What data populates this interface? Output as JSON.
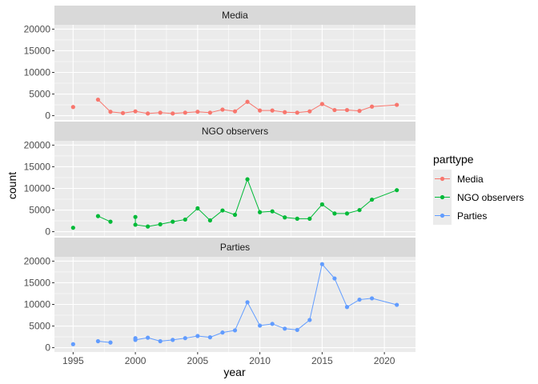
{
  "chart_data": {
    "type": "line",
    "facet_by": "parttype",
    "xlabel": "year",
    "ylabel": "count",
    "xlim": [
      1993.5,
      2022.5
    ],
    "ylim": [
      -1000,
      21000
    ],
    "x_ticks": [
      1995,
      2000,
      2005,
      2010,
      2015,
      2020
    ],
    "y_ticks": [
      0,
      5000,
      10000,
      15000,
      20000
    ],
    "grid": true,
    "legend_title": "parttype",
    "legend_position": "right",
    "panels": [
      {
        "name": "Media",
        "color": "#F8766D",
        "points": [
          [
            1995,
            2000
          ],
          [
            1997,
            3700
          ],
          [
            1998,
            900
          ],
          [
            1999,
            600
          ],
          [
            2000,
            1000
          ],
          [
            2001,
            500
          ],
          [
            2002,
            700
          ],
          [
            2003,
            500
          ],
          [
            2004,
            700
          ],
          [
            2005,
            900
          ],
          [
            2006,
            700
          ],
          [
            2007,
            1400
          ],
          [
            2008,
            1000
          ],
          [
            2009,
            3200
          ],
          [
            2010,
            1200
          ],
          [
            2011,
            1200
          ],
          [
            2012,
            800
          ],
          [
            2013,
            700
          ],
          [
            2014,
            1000
          ],
          [
            2015,
            2700
          ],
          [
            2016,
            1300
          ],
          [
            2017,
            1300
          ],
          [
            2018,
            1100
          ],
          [
            2019,
            2100
          ],
          [
            2021,
            2500
          ]
        ],
        "line_segments": [
          [
            1997,
            2021
          ]
        ]
      },
      {
        "name": "NGO observers",
        "color": "#00BA38",
        "points": [
          [
            1995,
            900
          ],
          [
            1997,
            3600
          ],
          [
            1998,
            2300
          ],
          [
            2000,
            3400
          ],
          [
            2000,
            1600
          ],
          [
            2001,
            1200
          ],
          [
            2002,
            1700
          ],
          [
            2003,
            2300
          ],
          [
            2004,
            2800
          ],
          [
            2005,
            5400
          ],
          [
            2006,
            2600
          ],
          [
            2007,
            4900
          ],
          [
            2008,
            3900
          ],
          [
            2009,
            12100
          ],
          [
            2010,
            4500
          ],
          [
            2011,
            4700
          ],
          [
            2012,
            3300
          ],
          [
            2013,
            3000
          ],
          [
            2014,
            3000
          ],
          [
            2015,
            6300
          ],
          [
            2016,
            4200
          ],
          [
            2017,
            4200
          ],
          [
            2018,
            5000
          ],
          [
            2019,
            7400
          ],
          [
            2021,
            9600
          ]
        ],
        "line_segments": [
          [
            1997,
            1998
          ],
          [
            2000,
            2021
          ]
        ]
      },
      {
        "name": "Parties",
        "color": "#619CFF",
        "points": [
          [
            1995,
            800
          ],
          [
            1997,
            1500
          ],
          [
            1998,
            1200
          ],
          [
            2000,
            2200
          ],
          [
            2000,
            1800
          ],
          [
            2001,
            2300
          ],
          [
            2002,
            1500
          ],
          [
            2003,
            1800
          ],
          [
            2004,
            2200
          ],
          [
            2005,
            2700
          ],
          [
            2006,
            2400
          ],
          [
            2007,
            3500
          ],
          [
            2008,
            4000
          ],
          [
            2009,
            10500
          ],
          [
            2010,
            5100
          ],
          [
            2011,
            5500
          ],
          [
            2012,
            4400
          ],
          [
            2013,
            4100
          ],
          [
            2014,
            6400
          ],
          [
            2015,
            19300
          ],
          [
            2016,
            16000
          ],
          [
            2017,
            9400
          ],
          [
            2018,
            11100
          ],
          [
            2019,
            11400
          ],
          [
            2021,
            9900
          ]
        ],
        "line_segments": [
          [
            1997,
            1998
          ],
          [
            2000,
            2021
          ]
        ]
      }
    ]
  }
}
